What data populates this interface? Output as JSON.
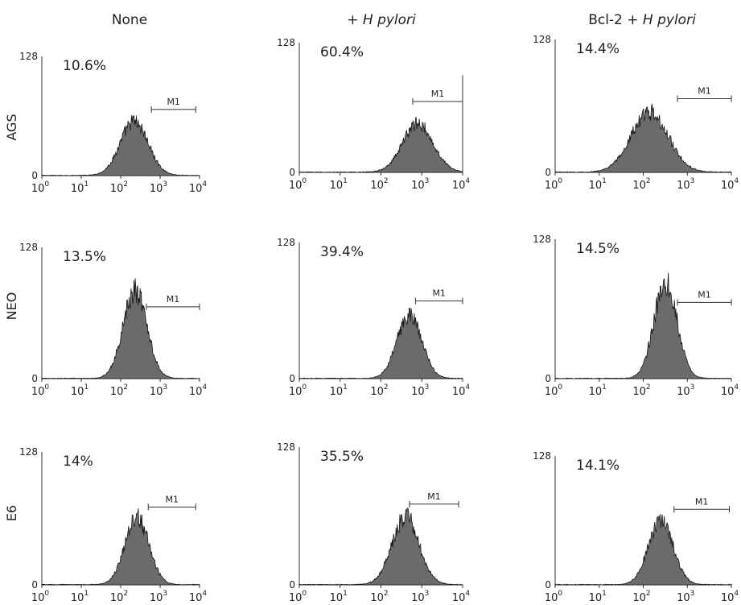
{
  "chart_data": {
    "type": "histogram",
    "columns": [
      {
        "label": "None"
      },
      {
        "label_plain": "+ ",
        "label_italic": "H pylori"
      },
      {
        "label_plain": "Bcl-2 + ",
        "label_italic": "H pylori"
      }
    ],
    "rows": [
      "AGS",
      "NEO",
      "E6"
    ],
    "x_scale": "log",
    "x_range": [
      1,
      10000
    ],
    "x_ticks": [
      {
        "base": "10",
        "exp": "0"
      },
      {
        "base": "10",
        "exp": "1"
      },
      {
        "base": "10",
        "exp": "2"
      },
      {
        "base": "10",
        "exp": "3"
      },
      {
        "base": "10",
        "exp": "4"
      }
    ],
    "y_range": [
      0,
      128
    ],
    "y_ticks": [
      "0",
      "128"
    ],
    "gate_label": "M1",
    "panels": [
      {
        "row": "AGS",
        "column": "None",
        "percent": "10.6%",
        "gate": [
          600,
          8000
        ],
        "peak_x": 220,
        "peak_y": 58,
        "spread": 0.35,
        "spike": false
      },
      {
        "row": "AGS",
        "column": "+ H pylori",
        "percent": "60.4%",
        "gate": [
          600,
          10000
        ],
        "peak_x": 800,
        "peak_y": 48,
        "spread": 0.37,
        "spike": true
      },
      {
        "row": "AGS",
        "column": "Bcl-2 + H pylori",
        "percent": "14.4%",
        "gate": [
          600,
          10000
        ],
        "peak_x": 140,
        "peak_y": 58,
        "spread": 0.42,
        "spike": false
      },
      {
        "row": "NEO",
        "column": "None",
        "percent": "13.5%",
        "gate": [
          450,
          10000
        ],
        "peak_x": 230,
        "peak_y": 85,
        "spread": 0.3,
        "spike": false
      },
      {
        "row": "NEO",
        "column": "+ H pylori",
        "percent": "39.4%",
        "gate": [
          700,
          10000
        ],
        "peak_x": 500,
        "peak_y": 60,
        "spread": 0.3,
        "spike": false
      },
      {
        "row": "NEO",
        "column": "Bcl-2 + H pylori",
        "percent": "14.5%",
        "gate": [
          600,
          10000
        ],
        "peak_x": 320,
        "peak_y": 88,
        "spread": 0.26,
        "spike": false
      },
      {
        "row": "E6",
        "column": "None",
        "percent": "14%",
        "gate": [
          500,
          8000
        ],
        "peak_x": 260,
        "peak_y": 65,
        "spread": 0.3,
        "spike": false
      },
      {
        "row": "E6",
        "column": "+ H pylori",
        "percent": "35.5%",
        "gate": [
          500,
          8000
        ],
        "peak_x": 400,
        "peak_y": 63,
        "spread": 0.33,
        "spike": false
      },
      {
        "row": "E6",
        "column": "Bcl-2 + H pylori",
        "percent": "14.1%",
        "gate": [
          500,
          9000
        ],
        "peak_x": 250,
        "peak_y": 63,
        "spread": 0.28,
        "spike": false
      }
    ]
  }
}
